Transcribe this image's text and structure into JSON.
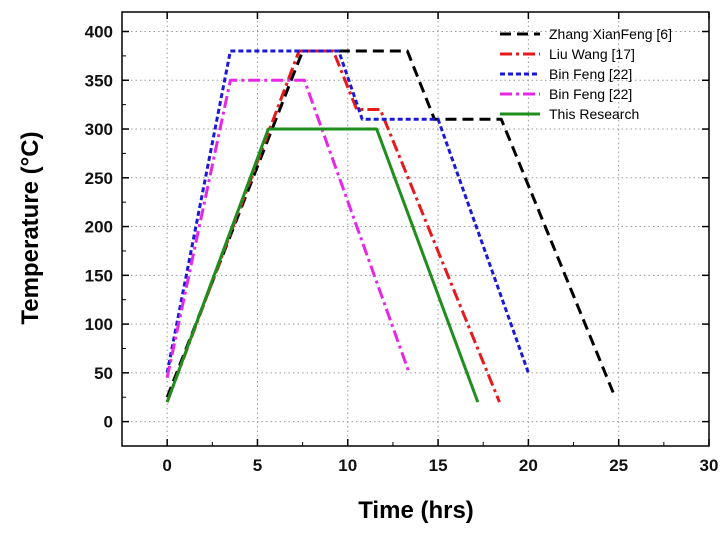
{
  "chart_data": {
    "type": "line",
    "xlabel": "Time (hrs)",
    "ylabel": "Temperature (°C)",
    "xlim": [
      -2.5,
      30
    ],
    "ylim": [
      -25,
      420
    ],
    "xticks": [
      0,
      5,
      10,
      15,
      20,
      25,
      30
    ],
    "yticks": [
      0,
      50,
      100,
      150,
      200,
      250,
      300,
      350,
      400
    ],
    "grid": true,
    "legend_position": "top-right",
    "series": [
      {
        "name": "Zhang XianFeng [6]",
        "color": "#000000",
        "style": "dash",
        "points": [
          [
            0,
            25
          ],
          [
            7.5,
            380
          ],
          [
            13.3,
            380
          ],
          [
            14.8,
            310
          ],
          [
            18.5,
            310
          ],
          [
            24.8,
            25
          ]
        ]
      },
      {
        "name": "Liu Wang [17]",
        "color": "#e8191d",
        "style": "dashdot",
        "points": [
          [
            0,
            20
          ],
          [
            7.3,
            380
          ],
          [
            9.2,
            380
          ],
          [
            10.5,
            320
          ],
          [
            11.8,
            320
          ],
          [
            18.4,
            20
          ]
        ]
      },
      {
        "name": "Bin Feng [22]",
        "color": "#1a1ad6",
        "style": "shortdash",
        "points": [
          [
            0,
            50
          ],
          [
            3.5,
            380
          ],
          [
            9.5,
            380
          ],
          [
            10.8,
            310
          ],
          [
            15,
            310
          ],
          [
            20,
            50
          ]
        ]
      },
      {
        "name": "Bin Feng [22]",
        "color": "#e628e6",
        "style": "dashdot",
        "points": [
          [
            0,
            45
          ],
          [
            3.5,
            350
          ],
          [
            7.6,
            350
          ],
          [
            13.4,
            50
          ]
        ]
      },
      {
        "name": "This Research",
        "color": "#1e8f1e",
        "style": "solid",
        "points": [
          [
            0,
            20
          ],
          [
            5.6,
            300
          ],
          [
            11.6,
            300
          ],
          [
            17.2,
            20
          ]
        ]
      }
    ]
  }
}
